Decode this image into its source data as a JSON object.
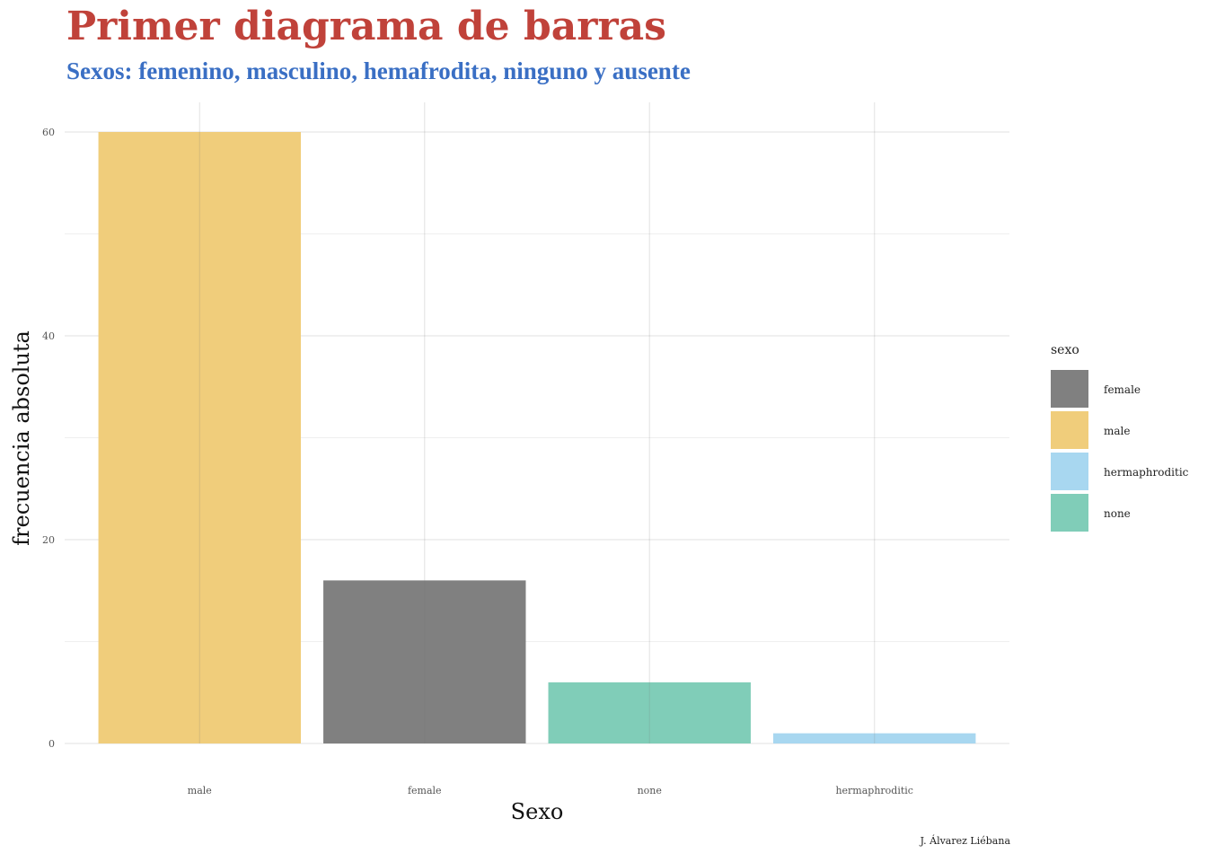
{
  "title": "Primer diagrama de barras",
  "subtitle": "Sexos: femenino, masculino, hemafrodita, ninguno y ausente",
  "caption": "J. Álvarez Liébana",
  "colors": {
    "title": "#c0423a",
    "subtitle": "#3a6fc4",
    "female": "#808080",
    "male": "#f0cd7b",
    "hermaphroditic": "#a8d7f0",
    "none": "#80cdb8",
    "grid": "#e6e6e6"
  },
  "chart_data": {
    "type": "bar",
    "categories": [
      "male",
      "female",
      "none",
      "hermaphroditic"
    ],
    "values": [
      60,
      16,
      6,
      1
    ],
    "fill_by": [
      "male",
      "female",
      "none",
      "hermaphroditic"
    ],
    "xlabel": "Sexo",
    "ylabel": "frecuencia absoluta",
    "ylim": [
      0,
      63
    ],
    "yticks": [
      0,
      20,
      40,
      60
    ],
    "grid": true,
    "legend": {
      "title": "sexo",
      "position": "right",
      "entries": [
        "female",
        "male",
        "hermaphroditic",
        "none"
      ]
    }
  }
}
